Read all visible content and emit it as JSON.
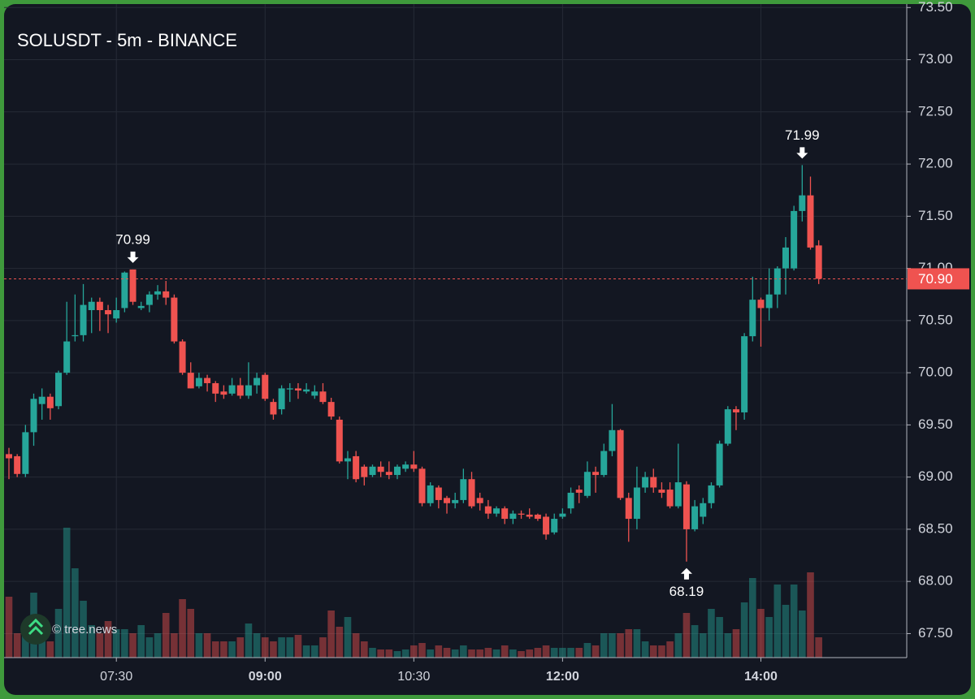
{
  "chart_data": {
    "type": "candlestick",
    "title": "SOLUSDT - 5m - BINANCE",
    "watermark": "© tree.news",
    "categories": [
      null,
      null,
      null,
      null,
      null,
      null,
      null,
      null,
      null,
      null,
      null,
      null,
      null,
      "07:30",
      null,
      null,
      null,
      null,
      null,
      null,
      null,
      null,
      null,
      null,
      null,
      null,
      null,
      null,
      null,
      null,
      null,
      "09:00",
      null,
      null,
      null,
      null,
      null,
      null,
      null,
      null,
      null,
      null,
      null,
      null,
      null,
      null,
      null,
      null,
      null,
      "10:30",
      null,
      null,
      null,
      null,
      null,
      null,
      null,
      null,
      null,
      null,
      null,
      null,
      null,
      null,
      null,
      null,
      null,
      "12:00",
      null,
      null,
      null,
      null,
      null,
      null,
      null,
      null,
      null,
      null,
      null,
      null,
      null,
      null,
      null,
      null,
      null,
      null,
      null,
      null,
      null,
      null,
      null,
      "14:00",
      null,
      null,
      null,
      null,
      null,
      null,
      null
    ],
    "open": [
      69.22,
      69.2,
      69.03,
      69.43,
      69.7,
      69.77,
      69.68,
      70.0,
      70.35,
      70.36,
      70.6,
      70.68,
      70.6,
      70.52,
      70.62,
      70.99,
      70.62,
      70.65,
      70.75,
      70.78,
      70.72,
      70.3,
      70.0,
      69.87,
      69.95,
      69.9,
      69.82,
      69.8,
      69.88,
      69.78,
      69.88,
      69.98,
      69.72,
      69.65,
      69.84,
      69.85,
      69.82,
      69.78,
      69.82,
      69.72,
      69.55,
      69.15,
      69.2,
      69.1,
      69.02,
      69.1,
      69.05,
      69.02,
      69.08,
      69.12,
      69.08,
      68.75,
      68.9,
      68.8,
      68.75,
      68.78,
      68.98,
      68.8,
      68.72,
      68.65,
      68.7,
      68.6,
      68.65,
      68.64,
      68.64,
      68.62,
      68.47,
      68.62,
      68.7,
      68.88,
      68.82,
      69.05,
      69.02,
      69.25,
      69.45,
      68.8,
      68.6,
      68.9,
      69.0,
      68.88,
      68.88,
      68.72,
      68.93,
      68.5,
      68.62,
      68.75,
      68.92,
      69.32,
      69.65,
      69.62,
      70.35,
      70.7,
      70.62,
      70.75,
      71.0,
      71.0,
      71.55,
      71.7,
      71.22
    ],
    "high": [
      69.28,
      69.22,
      69.5,
      69.8,
      69.85,
      69.8,
      70.02,
      70.68,
      70.75,
      70.85,
      70.72,
      70.72,
      70.65,
      70.72,
      70.97,
      70.99,
      70.68,
      70.78,
      70.84,
      70.88,
      70.75,
      70.32,
      70.1,
      70.0,
      69.98,
      69.92,
      69.88,
      69.95,
      69.95,
      70.1,
      70.0,
      70.0,
      69.75,
      69.88,
      69.9,
      69.9,
      69.9,
      69.88,
      69.9,
      69.76,
      69.58,
      69.25,
      69.25,
      69.12,
      69.12,
      69.15,
      69.15,
      69.12,
      69.15,
      69.25,
      69.1,
      68.95,
      68.92,
      68.82,
      68.85,
      69.08,
      69.05,
      68.85,
      68.78,
      68.72,
      68.72,
      68.68,
      68.68,
      68.7,
      68.65,
      68.65,
      68.65,
      68.7,
      68.9,
      68.92,
      69.15,
      69.1,
      69.32,
      69.7,
      69.46,
      68.85,
      69.1,
      69.05,
      69.08,
      68.95,
      68.95,
      69.32,
      68.96,
      68.78,
      68.8,
      68.95,
      69.35,
      69.68,
      69.68,
      70.38,
      70.92,
      70.72,
      71.0,
      71.02,
      71.3,
      71.6,
      71.99,
      71.88,
      71.27
    ],
    "low": [
      68.98,
      69.0,
      69.0,
      69.3,
      69.55,
      69.55,
      69.65,
      69.98,
      70.3,
      70.3,
      70.38,
      70.4,
      70.38,
      70.48,
      70.58,
      70.65,
      70.6,
      70.58,
      70.7,
      70.65,
      70.28,
      69.98,
      69.85,
      69.85,
      69.82,
      69.72,
      69.75,
      69.78,
      69.75,
      69.75,
      69.8,
      69.73,
      69.55,
      69.6,
      69.72,
      69.75,
      69.8,
      69.75,
      69.7,
      69.55,
      69.13,
      68.98,
      68.95,
      68.92,
      69.0,
      69.0,
      68.98,
      68.98,
      69.05,
      69.05,
      68.72,
      68.72,
      68.7,
      68.65,
      68.7,
      68.75,
      68.7,
      68.68,
      68.6,
      68.62,
      68.55,
      68.55,
      68.6,
      68.6,
      68.58,
      68.4,
      68.45,
      68.6,
      68.65,
      68.75,
      68.8,
      68.85,
      69.0,
      69.2,
      68.78,
      68.38,
      68.5,
      68.85,
      68.85,
      68.8,
      68.7,
      68.7,
      68.19,
      68.48,
      68.55,
      68.7,
      68.9,
      69.3,
      69.45,
      69.55,
      70.3,
      70.25,
      70.5,
      70.62,
      70.75,
      70.98,
      71.45,
      71.18,
      70.85
    ],
    "close": [
      69.18,
      69.03,
      69.43,
      69.75,
      69.77,
      69.66,
      70.0,
      70.3,
      70.36,
      70.65,
      70.68,
      70.6,
      70.56,
      70.6,
      70.96,
      70.68,
      70.64,
      70.75,
      70.78,
      70.72,
      70.3,
      70.0,
      69.85,
      69.95,
      69.9,
      69.8,
      69.79,
      69.88,
      69.78,
      69.88,
      69.95,
      69.75,
      69.6,
      69.85,
      69.85,
      69.83,
      69.84,
      69.82,
      69.72,
      69.58,
      69.15,
      69.18,
      68.98,
      69.0,
      69.1,
      69.05,
      69.02,
      69.1,
      69.12,
      69.08,
      68.75,
      68.92,
      68.78,
      68.75,
      68.78,
      68.98,
      68.72,
      68.75,
      68.65,
      68.7,
      68.6,
      68.65,
      68.64,
      68.62,
      68.6,
      68.45,
      68.6,
      68.65,
      68.85,
      68.85,
      69.05,
      69.02,
      69.25,
      69.45,
      68.8,
      68.6,
      68.9,
      69.0,
      68.9,
      68.85,
      68.72,
      68.95,
      68.5,
      68.72,
      68.75,
      68.92,
      69.32,
      69.65,
      69.62,
      70.35,
      70.7,
      70.62,
      70.75,
      71.0,
      71.2,
      71.55,
      71.7,
      71.2,
      70.9
    ],
    "volume": [
      75,
      30,
      40,
      80,
      40,
      20,
      60,
      160,
      110,
      70,
      40,
      30,
      45,
      35,
      35,
      30,
      40,
      25,
      30,
      55,
      30,
      72,
      60,
      30,
      30,
      20,
      20,
      20,
      25,
      42,
      30,
      25,
      20,
      25,
      25,
      28,
      15,
      15,
      25,
      58,
      38,
      50,
      30,
      20,
      12,
      10,
      10,
      8,
      10,
      15,
      18,
      10,
      15,
      12,
      10,
      15,
      10,
      10,
      12,
      10,
      15,
      10,
      8,
      10,
      12,
      15,
      12,
      12,
      12,
      12,
      18,
      15,
      30,
      30,
      30,
      35,
      35,
      20,
      15,
      15,
      20,
      30,
      55,
      40,
      30,
      60,
      50,
      30,
      35,
      68,
      98,
      60,
      50,
      90,
      65,
      90,
      58,
      105,
      25
    ],
    "up_color": "#26a69a",
    "down_color": "#ef5350",
    "ylim": [
      67.27,
      73.51
    ],
    "yticks": [
      {
        "value": 67.5,
        "label": "67.50"
      },
      {
        "value": 68,
        "label": "68.00"
      },
      {
        "value": 68.5,
        "label": "68.50"
      },
      {
        "value": 69,
        "label": "69.00"
      },
      {
        "value": 69.5,
        "label": "69.50"
      },
      {
        "value": 70,
        "label": "70.00"
      },
      {
        "value": 70.5,
        "label": "70.50"
      },
      {
        "value": 71,
        "label": "71.00"
      },
      {
        "value": 71.5,
        "label": "71.50"
      },
      {
        "value": 72,
        "label": "72.00"
      },
      {
        "value": 72.5,
        "label": "72.50"
      },
      {
        "value": 73,
        "label": "73.00"
      },
      {
        "value": 73.5,
        "label": "73.50"
      }
    ],
    "last_price": {
      "value": 70.9,
      "label": "70.90"
    },
    "annotations": [
      70.99,
      71.99,
      68.19
    ],
    "grid": true
  }
}
